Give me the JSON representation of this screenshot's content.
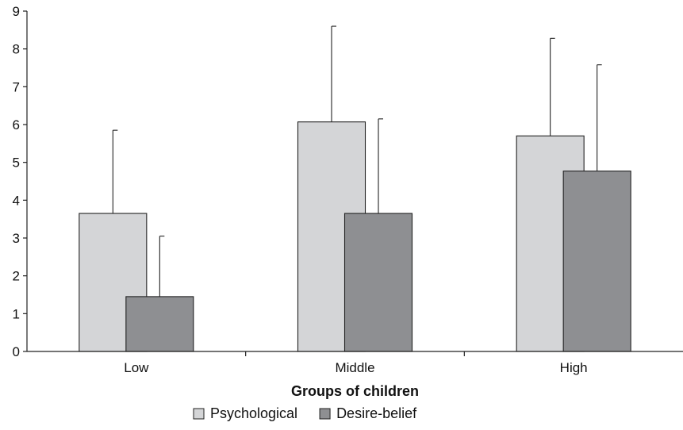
{
  "chart_data": {
    "type": "bar",
    "title": "",
    "xlabel": "Groups of children",
    "ylabel": "",
    "ylim": [
      0,
      9
    ],
    "yticks": [
      0,
      1,
      2,
      3,
      4,
      5,
      6,
      7,
      8,
      9
    ],
    "categories": [
      "Low",
      "Middle",
      "High"
    ],
    "series": [
      {
        "name": "Psychological",
        "values": [
          3.65,
          6.07,
          5.7
        ],
        "error_upper": [
          5.85,
          8.6,
          8.28
        ],
        "color": "#d4d5d7"
      },
      {
        "name": "Desire-belief",
        "values": [
          1.45,
          3.65,
          4.77
        ],
        "error_upper": [
          3.05,
          6.15,
          7.58
        ],
        "color": "#8e8f92"
      }
    ],
    "grid": false,
    "legend_position": "bottom"
  }
}
